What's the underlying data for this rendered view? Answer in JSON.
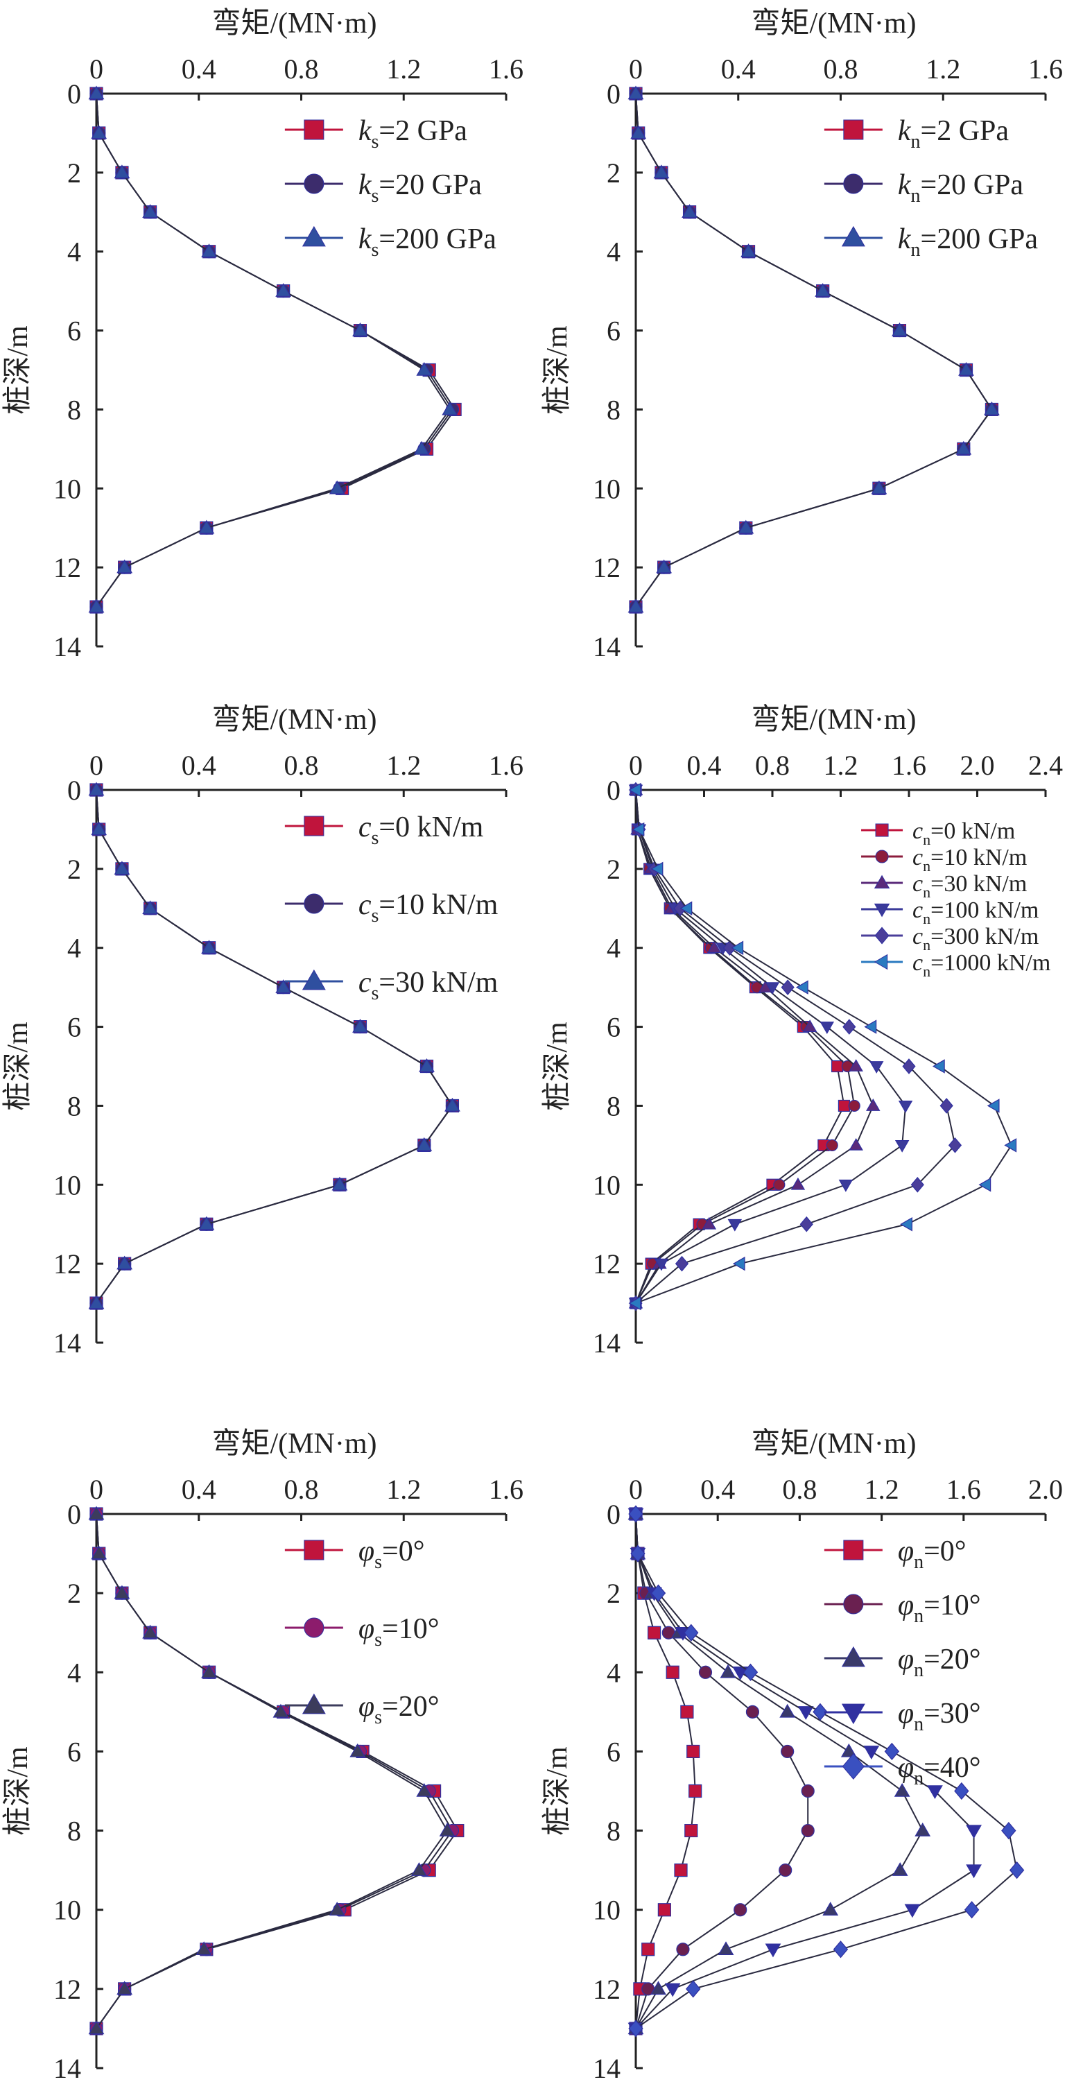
{
  "chart_data": [
    {
      "type": "line",
      "xlabel": "弯矩/(MN·m)",
      "ylabel": "桩深/m",
      "xlim": [
        0,
        1.6
      ],
      "xticks": [
        "0",
        "0.4",
        "0.8",
        "1.2",
        "1.6"
      ],
      "ylim": [
        0,
        14
      ],
      "yticks": [
        "0",
        "2",
        "4",
        "6",
        "8",
        "10",
        "12",
        "14"
      ],
      "legend": "top-right",
      "grid": false,
      "depth": [
        0,
        1,
        2,
        3,
        4,
        5,
        6,
        7,
        8,
        9,
        10,
        11,
        12,
        13
      ],
      "series": [
        {
          "var": "k",
          "sub": "s",
          "rest": "=2 GPa",
          "marker": "square",
          "color": "#c0143c",
          "values": [
            0,
            0.01,
            0.1,
            0.21,
            0.44,
            0.73,
            1.03,
            1.3,
            1.4,
            1.29,
            0.96,
            0.43,
            0.11,
            0
          ]
        },
        {
          "var": "k",
          "sub": "s",
          "rest": "=20 GPa",
          "marker": "circle",
          "color": "#3c2c6c",
          "values": [
            0,
            0.01,
            0.1,
            0.21,
            0.44,
            0.73,
            1.03,
            1.29,
            1.39,
            1.28,
            0.95,
            0.43,
            0.11,
            0
          ]
        },
        {
          "var": "k",
          "sub": "s",
          "rest": "=200 GPa",
          "marker": "triangle-up",
          "color": "#2f4f9f",
          "values": [
            0,
            0.01,
            0.1,
            0.21,
            0.44,
            0.73,
            1.03,
            1.28,
            1.38,
            1.27,
            0.94,
            0.43,
            0.11,
            0
          ]
        }
      ]
    },
    {
      "type": "line",
      "xlabel": "弯矩/(MN·m)",
      "ylabel": "桩深/m",
      "xlim": [
        0,
        1.6
      ],
      "xticks": [
        "0",
        "0.4",
        "0.8",
        "1.2",
        "1.6"
      ],
      "ylim": [
        0,
        14
      ],
      "yticks": [
        "0",
        "2",
        "4",
        "6",
        "8",
        "10",
        "12",
        "14"
      ],
      "legend": "top-right",
      "grid": false,
      "depth": [
        0,
        1,
        2,
        3,
        4,
        5,
        6,
        7,
        8,
        9,
        10,
        11,
        12,
        13
      ],
      "series": [
        {
          "var": "k",
          "sub": "n",
          "rest": "=2 GPa",
          "marker": "square",
          "color": "#c0143c",
          "values": [
            0,
            0.01,
            0.1,
            0.21,
            0.44,
            0.73,
            1.03,
            1.29,
            1.39,
            1.28,
            0.95,
            0.43,
            0.11,
            0
          ]
        },
        {
          "var": "k",
          "sub": "n",
          "rest": "=20 GPa",
          "marker": "circle",
          "color": "#3c2c6c",
          "values": [
            0,
            0.01,
            0.1,
            0.21,
            0.44,
            0.73,
            1.03,
            1.29,
            1.39,
            1.28,
            0.95,
            0.43,
            0.11,
            0
          ]
        },
        {
          "var": "k",
          "sub": "n",
          "rest": "=200 GPa",
          "marker": "triangle-up",
          "color": "#2f4f9f",
          "values": [
            0,
            0.01,
            0.1,
            0.21,
            0.44,
            0.73,
            1.03,
            1.29,
            1.39,
            1.28,
            0.95,
            0.43,
            0.11,
            0
          ]
        }
      ]
    },
    {
      "type": "line",
      "xlabel": "弯矩/(MN·m)",
      "ylabel": "桩深/m",
      "xlim": [
        0,
        1.6
      ],
      "xticks": [
        "0",
        "0.4",
        "0.8",
        "1.2",
        "1.6"
      ],
      "ylim": [
        0,
        14
      ],
      "yticks": [
        "0",
        "2",
        "4",
        "6",
        "8",
        "10",
        "12",
        "14"
      ],
      "legend": "top-right",
      "grid": false,
      "depth": [
        0,
        1,
        2,
        3,
        4,
        5,
        6,
        7,
        8,
        9,
        10,
        11,
        12,
        13
      ],
      "series": [
        {
          "var": "c",
          "sub": "s",
          "rest": "=0 kN/m",
          "marker": "square",
          "color": "#c0143c",
          "values": [
            0,
            0.01,
            0.1,
            0.21,
            0.44,
            0.73,
            1.03,
            1.29,
            1.39,
            1.28,
            0.95,
            0.43,
            0.11,
            0
          ]
        },
        {
          "var": "c",
          "sub": "s",
          "rest": "=10 kN/m",
          "marker": "circle",
          "color": "#3c2c6c",
          "values": [
            0,
            0.01,
            0.1,
            0.21,
            0.44,
            0.73,
            1.03,
            1.29,
            1.39,
            1.28,
            0.95,
            0.43,
            0.11,
            0
          ]
        },
        {
          "var": "c",
          "sub": "s",
          "rest": "=30 kN/m",
          "marker": "triangle-up",
          "color": "#2f4f9f",
          "values": [
            0,
            0.01,
            0.1,
            0.21,
            0.44,
            0.73,
            1.03,
            1.29,
            1.39,
            1.28,
            0.95,
            0.43,
            0.11,
            0
          ]
        }
      ]
    },
    {
      "type": "line",
      "xlabel": "弯矩/(MN·m)",
      "ylabel": "桩深/m",
      "xlim": [
        0,
        2.4
      ],
      "xticks": [
        "0",
        "0.4",
        "0.8",
        "1.2",
        "1.6",
        "2.0",
        "2.4"
      ],
      "ylim": [
        0,
        14
      ],
      "yticks": [
        "0",
        "2",
        "4",
        "6",
        "8",
        "10",
        "12",
        "14"
      ],
      "legend": "top-right",
      "grid": false,
      "depth": [
        0,
        1,
        2,
        3,
        4,
        5,
        6,
        7,
        8,
        9,
        10,
        11,
        12,
        13
      ],
      "series": [
        {
          "var": "c",
          "sub": "n",
          "rest": "=0 kN/m",
          "marker": "square",
          "color": "#c0143c",
          "values": [
            0,
            0.01,
            0.08,
            0.2,
            0.43,
            0.7,
            0.98,
            1.18,
            1.22,
            1.1,
            0.8,
            0.37,
            0.09,
            0
          ]
        },
        {
          "var": "c",
          "sub": "n",
          "rest": "=10 kN/m",
          "marker": "circle",
          "color": "#8c1c3c",
          "values": [
            0,
            0.01,
            0.08,
            0.2,
            0.44,
            0.71,
            1.0,
            1.24,
            1.28,
            1.15,
            0.84,
            0.39,
            0.1,
            0
          ]
        },
        {
          "var": "c",
          "sub": "n",
          "rest": "=30 kN/m",
          "marker": "triangle-up",
          "color": "#5a2a7a",
          "values": [
            0,
            0.01,
            0.09,
            0.21,
            0.46,
            0.76,
            1.02,
            1.29,
            1.39,
            1.29,
            0.95,
            0.43,
            0.14,
            0
          ]
        },
        {
          "var": "c",
          "sub": "n",
          "rest": "=100 kN/m",
          "marker": "triangle-down",
          "color": "#3a3a9a",
          "values": [
            0,
            0.02,
            0.1,
            0.23,
            0.51,
            0.8,
            1.12,
            1.41,
            1.58,
            1.56,
            1.23,
            0.58,
            0.15,
            0
          ]
        },
        {
          "var": "c",
          "sub": "n",
          "rest": "=300 kN/m",
          "marker": "diamond",
          "color": "#4a3e9a",
          "values": [
            0,
            0.02,
            0.11,
            0.26,
            0.55,
            0.89,
            1.25,
            1.6,
            1.82,
            1.87,
            1.65,
            1.0,
            0.27,
            0
          ]
        },
        {
          "var": "c",
          "sub": "n",
          "rest": "=1000 kN/m",
          "marker": "triangle-left",
          "color": "#2a7ac0",
          "values": [
            0,
            0.02,
            0.13,
            0.3,
            0.6,
            0.98,
            1.38,
            1.78,
            2.1,
            2.2,
            2.05,
            1.59,
            0.61,
            0
          ]
        }
      ]
    },
    {
      "type": "line",
      "xlabel": "弯矩/(MN·m)",
      "ylabel": "桩深/m",
      "xlim": [
        0,
        1.6
      ],
      "xticks": [
        "0",
        "0.4",
        "0.8",
        "1.2",
        "1.6"
      ],
      "ylim": [
        0,
        14
      ],
      "yticks": [
        "0",
        "2",
        "4",
        "6",
        "8",
        "10",
        "12",
        "14"
      ],
      "legend": "top-right",
      "grid": false,
      "depth": [
        0,
        1,
        2,
        3,
        4,
        5,
        6,
        7,
        8,
        9,
        10,
        11,
        12,
        13
      ],
      "series": [
        {
          "var": "φ",
          "sub": "s",
          "rest": "=0°",
          "marker": "square",
          "color": "#c0143c",
          "values": [
            0,
            0.01,
            0.1,
            0.21,
            0.44,
            0.73,
            1.04,
            1.32,
            1.41,
            1.3,
            0.97,
            0.43,
            0.11,
            0
          ]
        },
        {
          "var": "φ",
          "sub": "s",
          "rest": "=10°",
          "marker": "circle",
          "color": "#8c1c6c",
          "values": [
            0,
            0.01,
            0.1,
            0.21,
            0.44,
            0.73,
            1.03,
            1.3,
            1.39,
            1.28,
            0.95,
            0.43,
            0.11,
            0
          ]
        },
        {
          "var": "φ",
          "sub": "s",
          "rest": "=20°",
          "marker": "triangle-up",
          "color": "#3c3c5c",
          "values": [
            0,
            0.01,
            0.1,
            0.21,
            0.44,
            0.72,
            1.02,
            1.28,
            1.37,
            1.26,
            0.94,
            0.42,
            0.11,
            0
          ]
        }
      ]
    },
    {
      "type": "line",
      "xlabel": "弯矩/(MN·m)",
      "ylabel": "桩深/m",
      "xlim": [
        0,
        2.0
      ],
      "xticks": [
        "0",
        "0.4",
        "0.8",
        "1.2",
        "1.6",
        "2.0"
      ],
      "ylim": [
        0,
        14
      ],
      "yticks": [
        "0",
        "2",
        "4",
        "6",
        "8",
        "10",
        "12",
        "14"
      ],
      "legend": "top-right",
      "grid": false,
      "depth": [
        0,
        1,
        2,
        3,
        4,
        5,
        6,
        7,
        8,
        9,
        10,
        11,
        12,
        13
      ],
      "series": [
        {
          "var": "φ",
          "sub": "n",
          "rest": "=0°",
          "marker": "square",
          "color": "#c0143c",
          "values": [
            0,
            0.01,
            0.04,
            0.09,
            0.18,
            0.25,
            0.28,
            0.29,
            0.27,
            0.22,
            0.14,
            0.06,
            0.02,
            0
          ]
        },
        {
          "var": "φ",
          "sub": "n",
          "rest": "=10°",
          "marker": "circle",
          "color": "#6a2050",
          "values": [
            0,
            0.01,
            0.05,
            0.16,
            0.34,
            0.57,
            0.74,
            0.84,
            0.84,
            0.73,
            0.51,
            0.23,
            0.06,
            0
          ]
        },
        {
          "var": "φ",
          "sub": "n",
          "rest": "=20°",
          "marker": "triangle-up",
          "color": "#3a3a6a",
          "values": [
            0,
            0.01,
            0.08,
            0.21,
            0.45,
            0.74,
            1.04,
            1.3,
            1.4,
            1.29,
            0.95,
            0.44,
            0.11,
            0
          ]
        },
        {
          "var": "φ",
          "sub": "n",
          "rest": "=30°",
          "marker": "triangle-down",
          "color": "#3030a0",
          "values": [
            0,
            0.01,
            0.09,
            0.23,
            0.51,
            0.83,
            1.15,
            1.46,
            1.65,
            1.65,
            1.35,
            0.67,
            0.18,
            0
          ]
        },
        {
          "var": "φ",
          "sub": "n",
          "rest": "=40°",
          "marker": "diamond",
          "color": "#3a50c0",
          "values": [
            0,
            0.01,
            0.11,
            0.27,
            0.56,
            0.9,
            1.25,
            1.59,
            1.82,
            1.86,
            1.64,
            1.0,
            0.28,
            0
          ]
        }
      ]
    }
  ]
}
